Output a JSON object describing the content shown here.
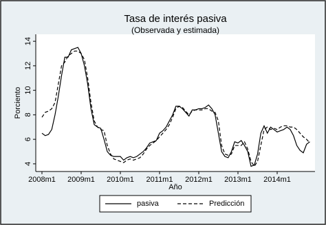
{
  "chart_data": {
    "type": "line",
    "title": "Tasa de interés pasiva",
    "subtitle": "(Observada y estimada)",
    "x_label": "Año",
    "y_label": "Porciento",
    "x": [
      "2008m1",
      "2008m2",
      "2008m3",
      "2008m4",
      "2008m5",
      "2008m6",
      "2008m7",
      "2008m8",
      "2008m9",
      "2008m10",
      "2008m11",
      "2008m12",
      "2009m1",
      "2009m2",
      "2009m3",
      "2009m4",
      "2009m5",
      "2009m6",
      "2009m7",
      "2009m8",
      "2009m9",
      "2009m10",
      "2009m11",
      "2009m12",
      "2010m1",
      "2010m2",
      "2010m3",
      "2010m4",
      "2010m5",
      "2010m6",
      "2010m7",
      "2010m8",
      "2010m9",
      "2010m10",
      "2010m11",
      "2010m12",
      "2011m1",
      "2011m2",
      "2011m3",
      "2011m4",
      "2011m5",
      "2011m6",
      "2011m7",
      "2011m8",
      "2011m9",
      "2011m10",
      "2011m11",
      "2011m12",
      "2012m1",
      "2012m2",
      "2012m3",
      "2012m4",
      "2012m5",
      "2012m6",
      "2012m7",
      "2012m8",
      "2012m9",
      "2012m10",
      "2012m11",
      "2012m12",
      "2013m1",
      "2013m2",
      "2013m3",
      "2013m4",
      "2013m5",
      "2013m6",
      "2013m7",
      "2013m8",
      "2013m9",
      "2013m10",
      "2013m11",
      "2013m12",
      "2014m1",
      "2014m2",
      "2014m3",
      "2014m4",
      "2014m5",
      "2014m6",
      "2014m7",
      "2014m8",
      "2014m9",
      "2014m10",
      "2014m11"
    ],
    "series": [
      {
        "name": "pasiva",
        "color": "#000000",
        "style": "solid",
        "values": [
          6.5,
          6.3,
          6.4,
          6.8,
          8.0,
          9.5,
          11.2,
          12.7,
          12.7,
          13.3,
          13.4,
          13.5,
          13.0,
          12.0,
          10.5,
          8.5,
          7.2,
          7.0,
          6.9,
          6.0,
          5.0,
          4.7,
          4.6,
          4.6,
          4.6,
          4.3,
          4.5,
          4.6,
          4.5,
          4.6,
          4.8,
          5.0,
          5.3,
          5.7,
          5.8,
          5.9,
          6.5,
          6.7,
          7.0,
          7.5,
          8.0,
          8.7,
          8.7,
          8.5,
          8.2,
          7.9,
          8.4,
          8.4,
          8.5,
          8.5,
          8.6,
          8.8,
          8.5,
          8.0,
          6.5,
          5.0,
          4.6,
          4.5,
          5.0,
          5.8,
          5.7,
          5.9,
          5.5,
          5.0,
          3.8,
          3.9,
          4.8,
          6.5,
          7.1,
          6.5,
          7.0,
          6.8,
          6.6,
          6.7,
          6.8,
          7.0,
          6.8,
          6.3,
          5.5,
          5.1,
          4.9,
          5.6,
          5.8
        ]
      },
      {
        "name": "Predicción",
        "color": "#000000",
        "style": "dashed",
        "values": [
          7.8,
          8.2,
          8.3,
          8.5,
          9.0,
          10.5,
          12.0,
          12.3,
          12.8,
          13.0,
          13.2,
          13.2,
          13.0,
          12.5,
          11.0,
          9.0,
          7.5,
          7.0,
          6.8,
          6.7,
          5.5,
          4.8,
          4.4,
          4.3,
          4.2,
          4.1,
          4.3,
          4.4,
          4.3,
          4.4,
          4.5,
          4.8,
          5.2,
          5.5,
          5.7,
          5.9,
          6.2,
          6.5,
          6.8,
          7.2,
          7.8,
          8.5,
          8.7,
          8.6,
          8.3,
          8.0,
          8.3,
          8.4,
          8.4,
          8.4,
          8.5,
          8.5,
          8.3,
          8.2,
          7.5,
          5.5,
          4.8,
          4.7,
          4.8,
          5.5,
          5.5,
          5.5,
          5.8,
          5.2,
          4.2,
          3.8,
          4.2,
          5.5,
          6.8,
          7.0,
          6.8,
          6.9,
          6.8,
          7.0,
          7.1,
          7.1,
          7.0,
          7.0,
          6.8,
          6.5,
          6.2,
          6.0,
          5.7
        ]
      }
    ],
    "xticks": [
      "2008m1",
      "2009m1",
      "2010m1",
      "2011m1",
      "2012m1",
      "2013m1",
      "2014m1"
    ],
    "ylim": [
      3.6,
      14.4
    ],
    "yticks": [
      4,
      6,
      8,
      10,
      12,
      14
    ],
    "grid": false,
    "legend": "bottom"
  }
}
